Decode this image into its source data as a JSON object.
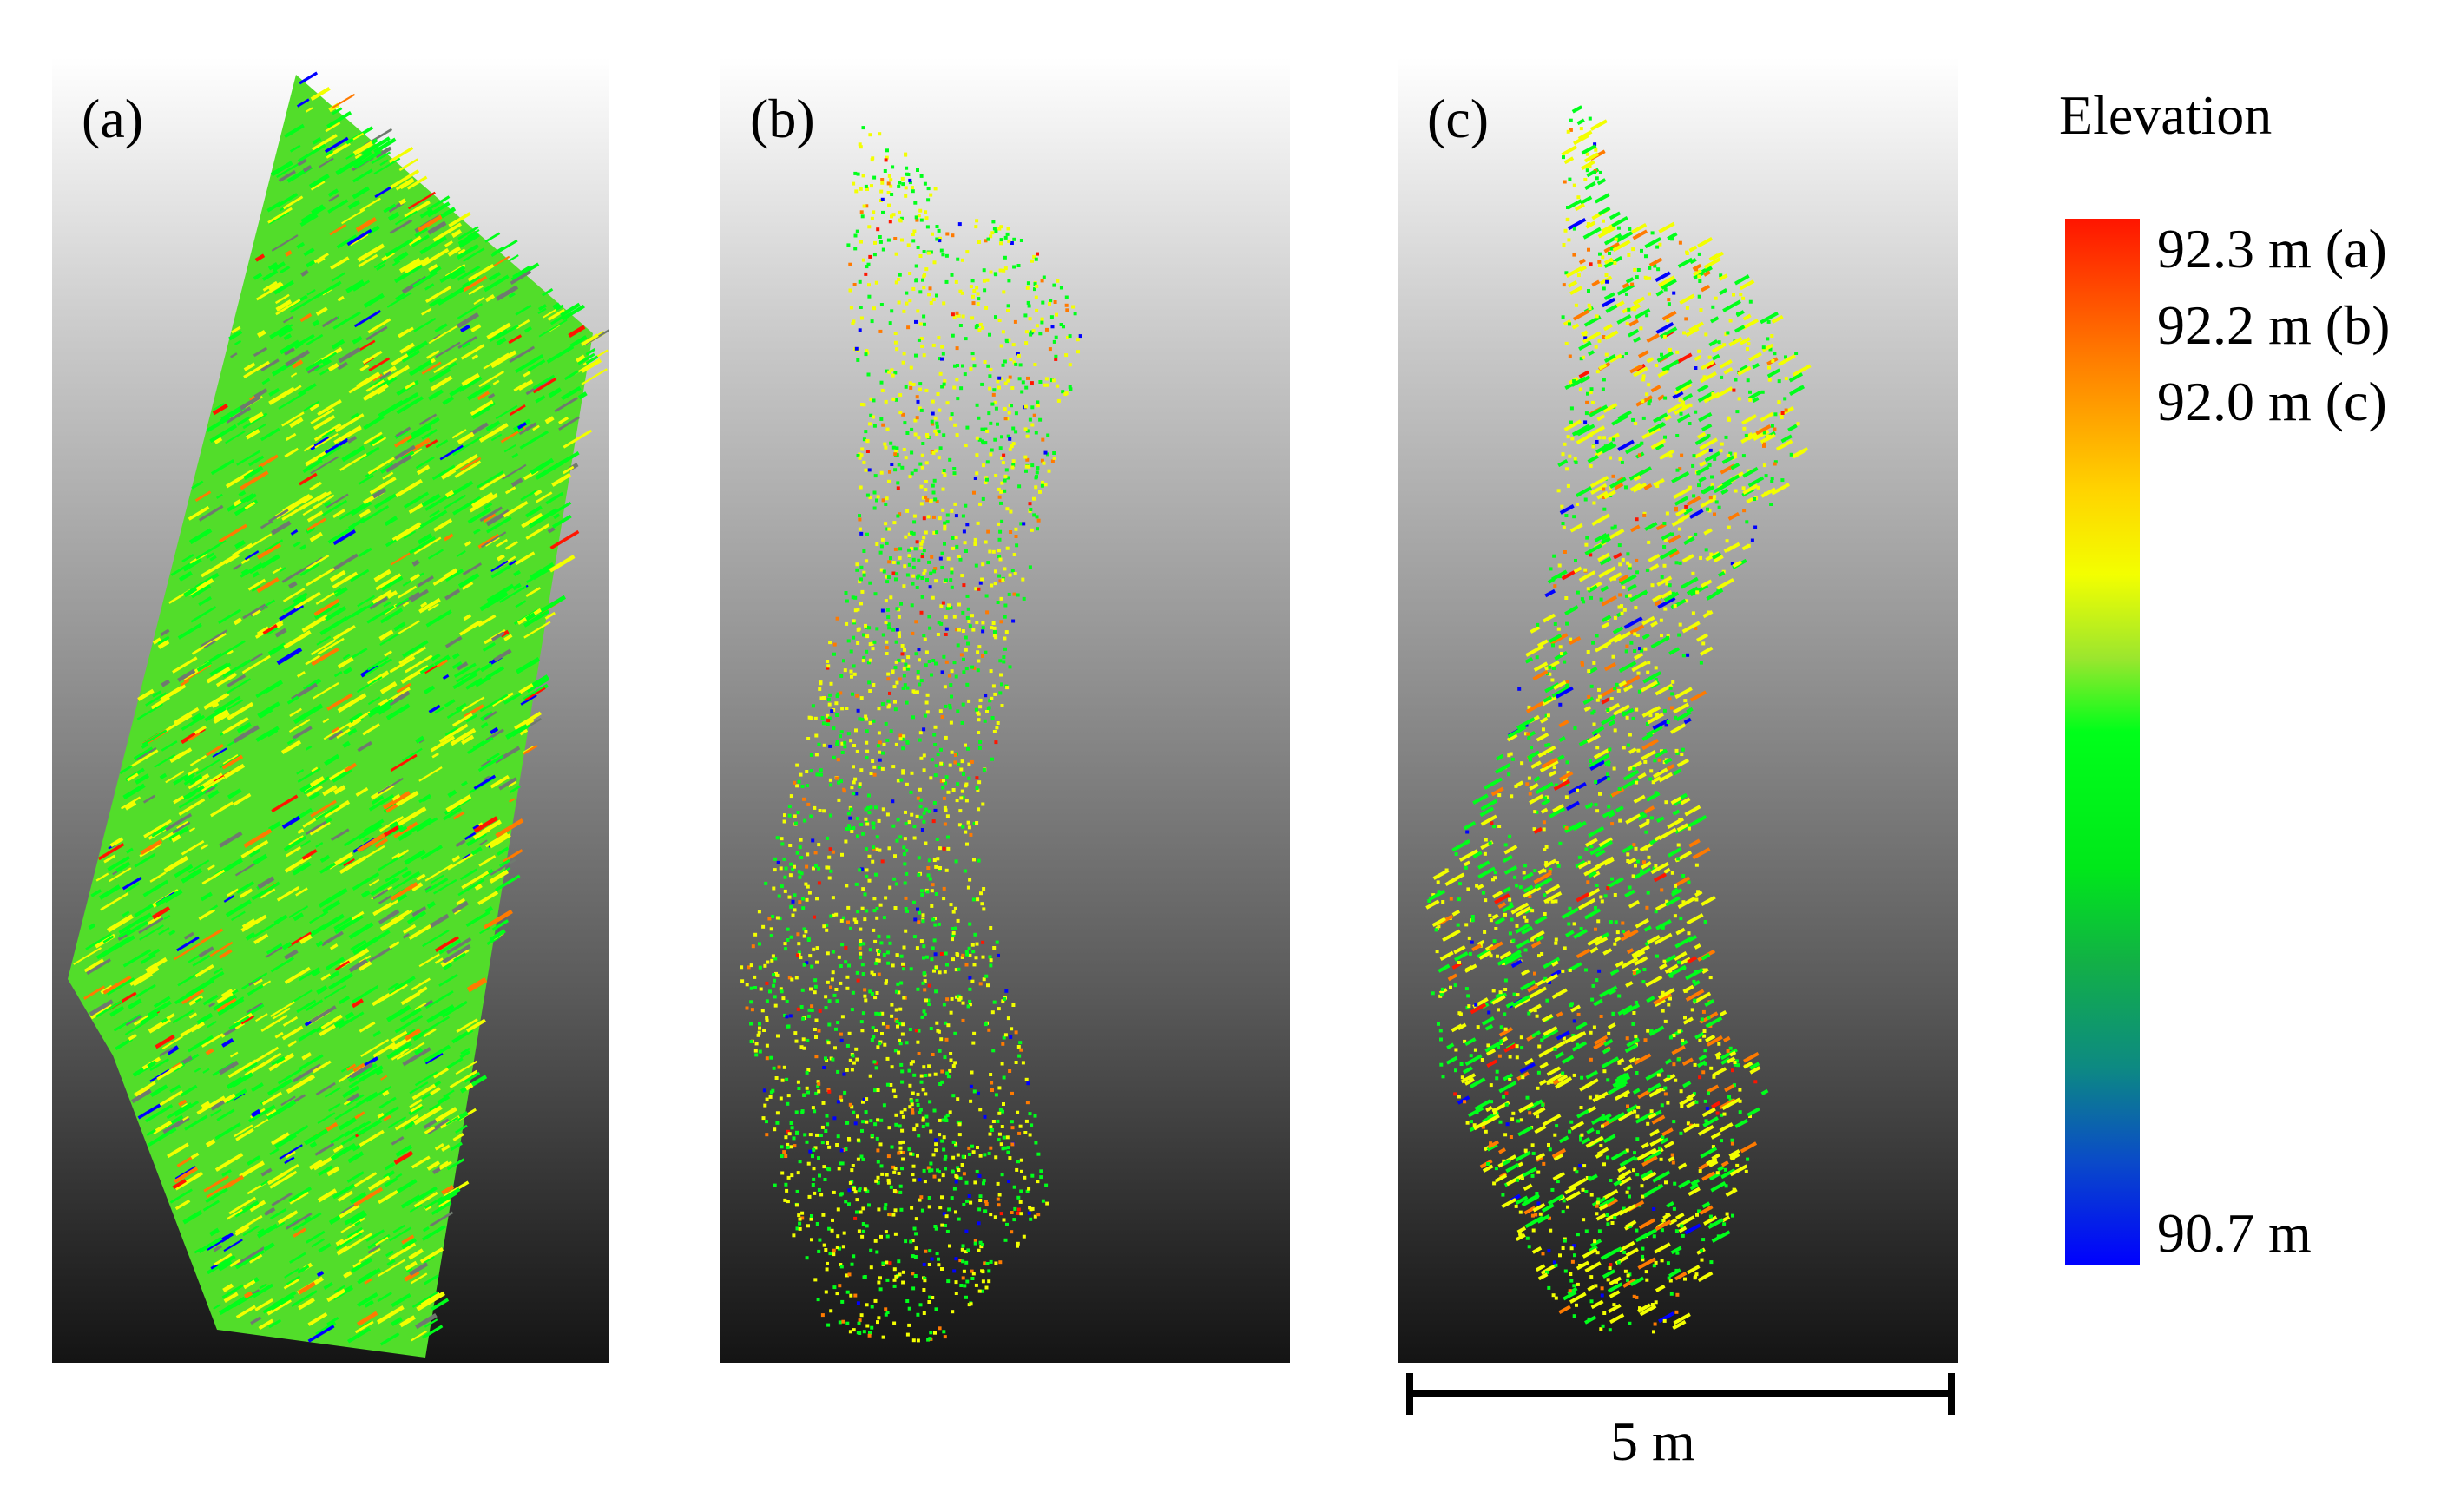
{
  "panels": [
    {
      "id": "a",
      "label": "(a)"
    },
    {
      "id": "b",
      "label": "(b)"
    },
    {
      "id": "c",
      "label": "(c)"
    }
  ],
  "legend": {
    "title": "Elevation",
    "max_labels": [
      "92.3 m (a)",
      "92.2 m (b)",
      "92.0 m (c)"
    ],
    "min_label": "90.7 m",
    "colors": [
      "#0000ff",
      "#00ff1a",
      "#f3ff00",
      "#ff7a00",
      "#ff1500"
    ]
  },
  "scale_bar": {
    "label": "5 m"
  }
}
